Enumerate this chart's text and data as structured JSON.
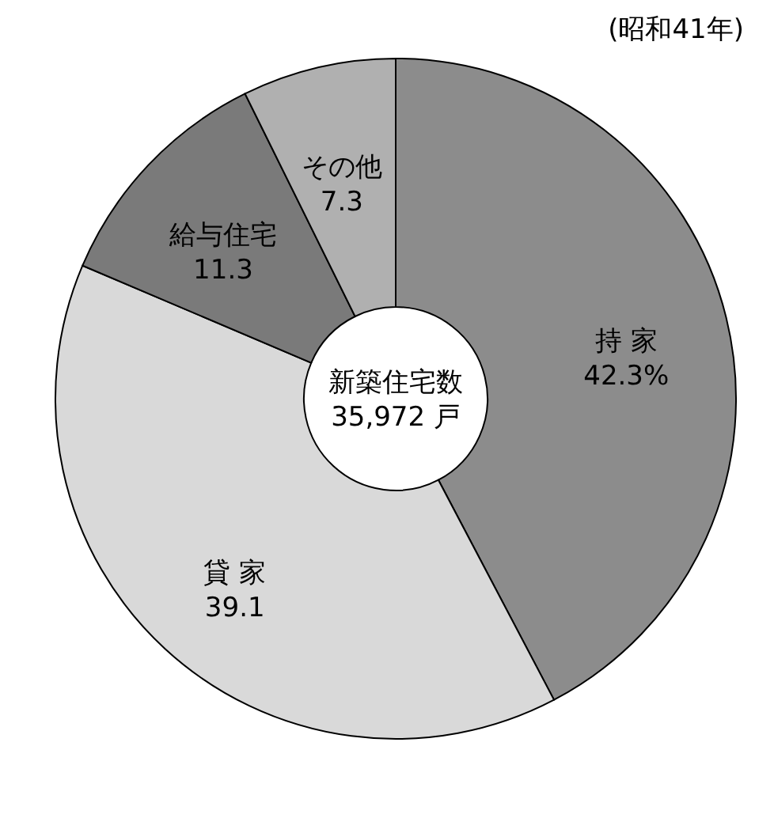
{
  "chart_data": {
    "type": "donut",
    "title": "(昭和41年)",
    "categories": [
      "持 家",
      "貸 家",
      "給与住宅",
      "その他"
    ],
    "values": [
      42.3,
      39.1,
      11.3,
      7.3
    ],
    "value_labels": [
      "42.3%",
      "39.1",
      "11.3",
      "7.3"
    ],
    "colors": [
      "#8c8c8c",
      "#d9d9d9",
      "#7a7a7a",
      "#b0b0b0"
    ],
    "annotations": [
      "新築住宅数\n35,972 戸"
    ],
    "legend": false
  }
}
